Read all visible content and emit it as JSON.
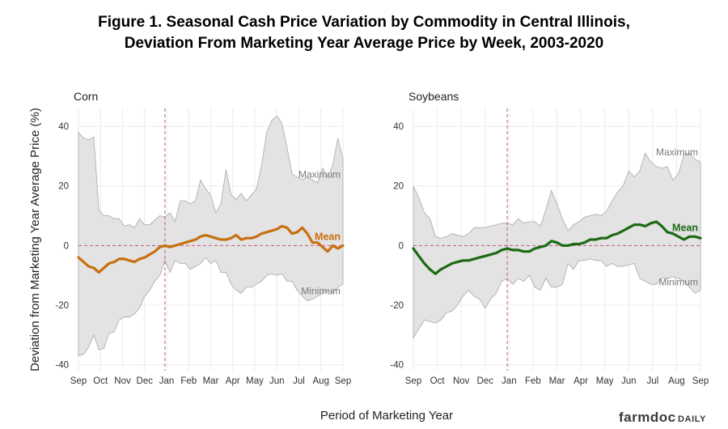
{
  "title_line1": "Figure 1. Seasonal Cash Price Variation by Commodity in Central Illinois,",
  "title_line2": "Deviation From Marketing Year Average Price by Week, 2003-2020",
  "ylabel": "Deviation from Marketing Year Average Price (%)",
  "xlabel": "Period of Marketing Year",
  "brand": {
    "main": "farmdoc",
    "sub": "DAILY"
  },
  "chart_data": [
    {
      "type": "area",
      "panel_title": "Corn",
      "categories": [
        "Sep",
        "Oct",
        "Nov",
        "Dec",
        "Jan",
        "Feb",
        "Mar",
        "Apr",
        "May",
        "Jun",
        "Jul",
        "Aug",
        "Sep"
      ],
      "xlim": [
        0,
        52
      ],
      "ylim": [
        -42,
        46
      ],
      "yticks": [
        -40,
        -20,
        0,
        20,
        40
      ],
      "vline_x": 17,
      "grid": true,
      "mean_color": "#c8700f",
      "labels": {
        "max": "Maximum",
        "min": "Minimum",
        "mean": "Mean"
      },
      "x": [
        0,
        1,
        2,
        3,
        4,
        5,
        6,
        7,
        8,
        9,
        10,
        11,
        12,
        13,
        14,
        15,
        16,
        17,
        18,
        19,
        20,
        21,
        22,
        23,
        24,
        25,
        26,
        27,
        28,
        29,
        30,
        31,
        32,
        33,
        34,
        35,
        36,
        37,
        38,
        39,
        40,
        41,
        42,
        43,
        44,
        45,
        46,
        47,
        48,
        49,
        50,
        51,
        52
      ],
      "max": [
        38,
        36,
        35.5,
        36.5,
        12,
        10,
        10,
        9,
        9,
        6.5,
        7,
        6,
        9,
        7,
        7,
        8.5,
        10,
        9.5,
        11,
        8,
        15,
        15,
        14,
        15,
        22,
        19,
        17,
        11,
        14,
        25.5,
        17,
        15.5,
        17.5,
        15,
        17,
        19,
        27,
        38,
        42,
        43.5,
        41,
        33,
        24,
        23,
        22,
        23,
        22,
        21,
        26,
        23,
        27,
        36,
        29
      ],
      "mean": [
        -4,
        -5.5,
        -7,
        -7.5,
        -9,
        -7.5,
        -6,
        -5.5,
        -4.5,
        -4.5,
        -5,
        -5.5,
        -4.5,
        -4,
        -3,
        -2,
        -0.5,
        0,
        -0.5,
        0,
        0.5,
        1,
        1.5,
        2,
        3,
        3.5,
        3,
        2.5,
        2,
        2,
        2.5,
        3.5,
        2,
        2.5,
        2.5,
        3,
        4,
        4.5,
        5,
        5.5,
        6.5,
        6,
        4,
        4.5,
        6,
        4,
        1,
        1,
        -0.5,
        -2,
        0,
        -1,
        0
      ],
      "min": [
        -37,
        -36.5,
        -34,
        -30,
        -35,
        -34.5,
        -29.5,
        -29,
        -25,
        -24,
        -24,
        -23,
        -21,
        -17,
        -15,
        -12,
        -10,
        -5,
        -9,
        -5,
        -6,
        -6,
        -8,
        -7,
        -6,
        -4,
        -6,
        -5,
        -9,
        -9,
        -13,
        -15,
        -16,
        -14,
        -14,
        -13,
        -12,
        -10,
        -9.5,
        -10,
        -9.5,
        -12,
        -12,
        -15,
        -17,
        -18.5,
        -18,
        -17,
        -16,
        -15,
        -16,
        -14,
        -13
      ]
    },
    {
      "type": "area",
      "panel_title": "Soybeans",
      "categories": [
        "Sep",
        "Oct",
        "Nov",
        "Dec",
        "Jan",
        "Feb",
        "Mar",
        "Apr",
        "May",
        "Jun",
        "Jul",
        "Aug",
        "Sep"
      ],
      "xlim": [
        0,
        52
      ],
      "ylim": [
        -42,
        46
      ],
      "yticks": [
        -40,
        -20,
        0,
        20,
        40
      ],
      "vline_x": 17,
      "grid": true,
      "mean_color": "#1c6b14",
      "labels": {
        "max": "Maximum",
        "min": "Minimum",
        "mean": "Mean"
      },
      "x": [
        0,
        1,
        2,
        3,
        4,
        5,
        6,
        7,
        8,
        9,
        10,
        11,
        12,
        13,
        14,
        15,
        16,
        17,
        18,
        19,
        20,
        21,
        22,
        23,
        24,
        25,
        26,
        27,
        28,
        29,
        30,
        31,
        32,
        33,
        34,
        35,
        36,
        37,
        38,
        39,
        40,
        41,
        42,
        43,
        44,
        45,
        46,
        47,
        48,
        49,
        50,
        51,
        52
      ],
      "max": [
        20,
        16,
        11,
        9,
        3,
        2.5,
        3,
        4,
        3.5,
        3,
        4,
        6,
        6,
        6,
        6.5,
        7,
        7.5,
        7.5,
        7,
        9,
        7.5,
        8,
        8,
        6.5,
        12,
        18.5,
        14,
        9,
        5,
        7,
        8,
        9.5,
        10,
        10.5,
        10,
        11.5,
        15,
        18,
        20,
        25,
        23,
        25,
        31,
        28,
        26.5,
        26,
        26.5,
        22,
        24,
        30.5,
        31,
        29,
        28
      ],
      "mean": [
        -1,
        -3.5,
        -6,
        -8,
        -9.5,
        -8,
        -7,
        -6,
        -5.5,
        -5,
        -5,
        -4.5,
        -4,
        -3.5,
        -3,
        -2.5,
        -1.5,
        -1,
        -1.5,
        -1.5,
        -2,
        -2,
        -1,
        -0.5,
        0,
        1.5,
        1,
        0,
        0,
        0.5,
        0.5,
        1,
        2,
        2,
        2.5,
        2.5,
        3.5,
        4,
        5,
        6,
        7,
        7,
        6.5,
        7.5,
        8,
        6.5,
        4.5,
        4,
        3,
        2,
        3,
        3,
        2.5
      ],
      "min": [
        -31,
        -28,
        -25,
        -25.5,
        -26,
        -25,
        -22.5,
        -22,
        -20,
        -17,
        -15,
        -17,
        -18,
        -21,
        -18,
        -16,
        -12,
        -11,
        -13,
        -11,
        -12,
        -10,
        -14,
        -15,
        -11,
        -14,
        -14,
        -13,
        -6,
        -8,
        -5,
        -5,
        -4.5,
        -5,
        -5,
        -7,
        -6,
        -7,
        -7,
        -6.5,
        -6,
        -11,
        -12,
        -13,
        -13,
        -11,
        -11,
        -10.5,
        -11,
        -12,
        -14,
        -16,
        -15
      ]
    }
  ]
}
